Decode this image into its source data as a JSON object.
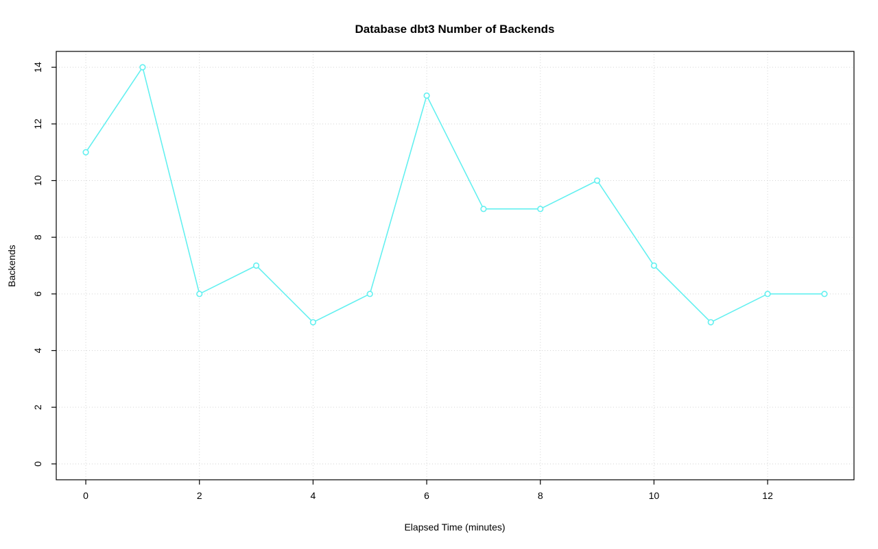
{
  "chart_data": {
    "type": "line",
    "title": "Database dbt3 Number of Backends",
    "xlabel": "Elapsed Time (minutes)",
    "ylabel": "Backends",
    "x": [
      0,
      1,
      2,
      3,
      4,
      5,
      6,
      7,
      8,
      9,
      10,
      11,
      12,
      13
    ],
    "values": [
      11,
      14,
      6,
      7,
      5,
      6,
      13,
      9,
      9,
      10,
      7,
      5,
      6,
      6
    ],
    "xlim": [
      0,
      13
    ],
    "ylim": [
      0,
      14
    ],
    "xticks": [
      0,
      2,
      4,
      6,
      8,
      10,
      12
    ],
    "yticks": [
      0,
      2,
      4,
      6,
      8,
      10,
      12,
      14
    ],
    "grid": true,
    "grid_style": "dotted",
    "grid_color": "#D4D4D4",
    "line_color": "#63F0F0",
    "marker": "open-circle",
    "marker_fill": "#ffffff",
    "axis_color": "#000000",
    "background_color": "#ffffff",
    "legend": "none"
  }
}
